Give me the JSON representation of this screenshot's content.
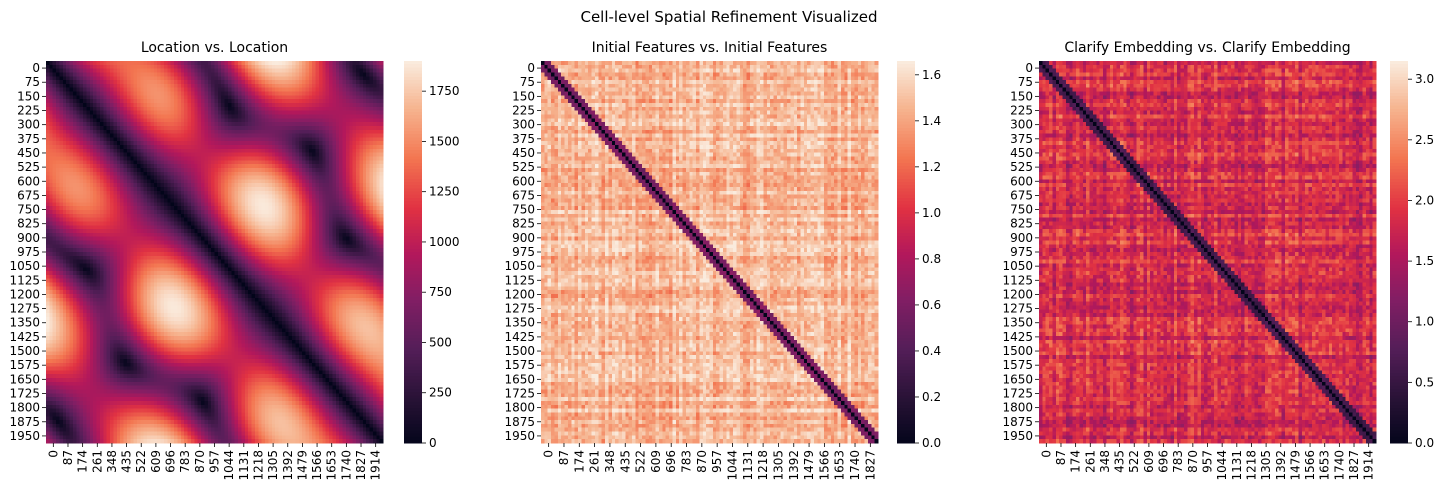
{
  "suptitle": "Cell-level Spatial Refinement Visualized",
  "chart_data": [
    {
      "type": "heatmap",
      "title": "Location vs. Location",
      "xlabel": "",
      "ylabel": "",
      "pattern": "location",
      "y_ticks": [
        "0",
        "75",
        "150",
        "225",
        "300",
        "375",
        "450",
        "525",
        "600",
        "675",
        "750",
        "825",
        "900",
        "975",
        "1050",
        "1125",
        "1200",
        "1275",
        "1350",
        "1425",
        "1500",
        "1575",
        "1650",
        "1725",
        "1800",
        "1875",
        "1950"
      ],
      "x_ticks": [
        "0",
        "87",
        "174",
        "261",
        "348",
        "435",
        "522",
        "609",
        "696",
        "783",
        "870",
        "957",
        "1044",
        "1131",
        "1218",
        "1305",
        "1392",
        "1479",
        "1566",
        "1653",
        "1740",
        "1827",
        "1914"
      ],
      "colorbar": {
        "min": 0,
        "max": 1900,
        "ticks": [
          "0",
          "250",
          "500",
          "750",
          "1000",
          "1250",
          "1500",
          "1750"
        ],
        "tick_values": [
          0,
          250,
          500,
          750,
          1000,
          1250,
          1500,
          1750
        ]
      },
      "colormap": "rocket"
    },
    {
      "type": "heatmap",
      "title": "Initial Features vs. Initial Features",
      "xlabel": "",
      "ylabel": "",
      "pattern": "initial",
      "y_ticks": [
        "0",
        "75",
        "150",
        "225",
        "300",
        "375",
        "450",
        "525",
        "600",
        "675",
        "750",
        "825",
        "900",
        "975",
        "1050",
        "1125",
        "1200",
        "1275",
        "1350",
        "1425",
        "1500",
        "1575",
        "1650",
        "1725",
        "1800",
        "1875",
        "1950"
      ],
      "x_ticks": [
        "0",
        "87",
        "174",
        "261",
        "348",
        "435",
        "522",
        "609",
        "696",
        "783",
        "870",
        "957",
        "1044",
        "1131",
        "1218",
        "1305",
        "1392",
        "1479",
        "1566",
        "1653",
        "1740",
        "1827"
      ],
      "colorbar": {
        "min": 0.0,
        "max": 1.66,
        "ticks": [
          "0.0",
          "0.2",
          "0.4",
          "0.6",
          "0.8",
          "1.0",
          "1.2",
          "1.4",
          "1.6"
        ],
        "tick_values": [
          0.0,
          0.2,
          0.4,
          0.6,
          0.8,
          1.0,
          1.2,
          1.4,
          1.6
        ]
      },
      "colormap": "rocket"
    },
    {
      "type": "heatmap",
      "title": "Clarify Embedding vs. Clarify Embedding",
      "xlabel": "",
      "ylabel": "",
      "pattern": "clarify",
      "y_ticks": [
        "0",
        "75",
        "150",
        "225",
        "300",
        "375",
        "450",
        "525",
        "600",
        "675",
        "750",
        "825",
        "900",
        "975",
        "1050",
        "1125",
        "1200",
        "1275",
        "1350",
        "1425",
        "1500",
        "1575",
        "1650",
        "1725",
        "1800",
        "1875",
        "1950"
      ],
      "x_ticks": [
        "0",
        "87",
        "174",
        "261",
        "348",
        "435",
        "522",
        "609",
        "696",
        "783",
        "870",
        "957",
        "1044",
        "1131",
        "1218",
        "1305",
        "1392",
        "1479",
        "1566",
        "1653",
        "1740",
        "1827",
        "1914"
      ],
      "colorbar": {
        "min": 0.0,
        "max": 3.15,
        "ticks": [
          "0.0",
          "0.5",
          "1.0",
          "1.5",
          "2.0",
          "2.5",
          "3.0"
        ],
        "tick_values": [
          0.0,
          0.5,
          1.0,
          1.5,
          2.0,
          2.5,
          3.0
        ]
      },
      "colormap": "rocket"
    }
  ]
}
